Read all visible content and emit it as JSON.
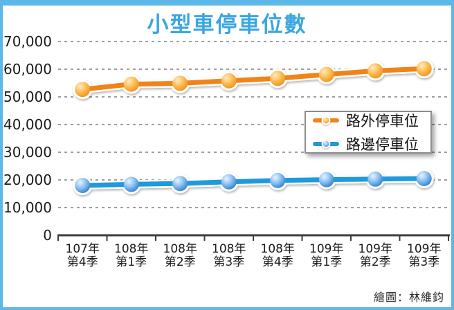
{
  "title": {
    "text": "小型車停車位數",
    "color": "#3aa6e0"
  },
  "frame": {
    "border_color": "#5bb8e8"
  },
  "credit": {
    "text": "繪圖：林維鈞"
  },
  "chart_data": {
    "type": "line",
    "title": "小型車停車位數",
    "categories": [
      [
        "107年",
        "第4季"
      ],
      [
        "108年",
        "第1季"
      ],
      [
        "108年",
        "第2季"
      ],
      [
        "108年",
        "第3季"
      ],
      [
        "108年",
        "第4季"
      ],
      [
        "109年",
        "第1季"
      ],
      [
        "109年",
        "第2季"
      ],
      [
        "109年",
        "第3季"
      ]
    ],
    "series": [
      {
        "name": "路外停車位",
        "color": "#f08418",
        "marker_gradient": [
          "#ffedc0",
          "#fcb84e",
          "#ee860f"
        ],
        "values": [
          52700,
          54600,
          54900,
          55800,
          56700,
          58100,
          59400,
          60200
        ]
      },
      {
        "name": "路邊停車位",
        "color": "#1f9ada",
        "marker_gradient": [
          "#e9f4fd",
          "#7fb9ed",
          "#1a70c6"
        ],
        "values": [
          18000,
          18400,
          18700,
          19300,
          19800,
          20100,
          20300,
          20500
        ]
      }
    ],
    "ylim": [
      0,
      70000
    ],
    "ytick_step": 10000,
    "ytick_labels": [
      "0",
      "10,000",
      "20,000",
      "30,000",
      "40,000",
      "50,000",
      "60,000",
      "70,000"
    ],
    "xlabel": "",
    "ylabel": "",
    "grid": "horizontal-dashed",
    "legend_position": "middle-right",
    "axis_color": "#3c3c3c",
    "grid_color": "#9e9e9e",
    "tick_label_color": "#1a1a1a"
  }
}
